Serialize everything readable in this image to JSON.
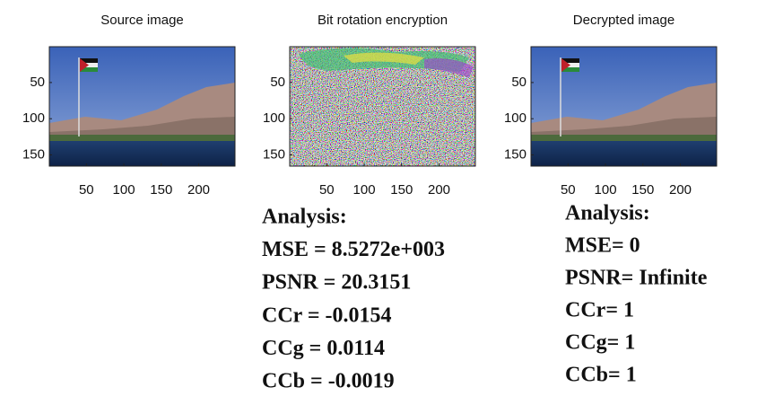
{
  "panels": [
    {
      "title": "Source image",
      "xlim": [
        0.5,
        248.5
      ],
      "ylim": [
        0.5,
        165.5
      ],
      "xticks": [
        50,
        100,
        150,
        200
      ],
      "yticks": [
        50,
        100,
        150
      ]
    },
    {
      "title": "Bit rotation encryption",
      "xlim": [
        0.5,
        248.5
      ],
      "ylim": [
        0.5,
        165.5
      ],
      "xticks": [
        50,
        100,
        150,
        200
      ],
      "yticks": [
        50,
        100,
        150
      ]
    },
    {
      "title": "Decrypted image",
      "xlim": [
        0.5,
        248.5
      ],
      "ylim": [
        0.5,
        165.5
      ],
      "xticks": [
        50,
        100,
        150,
        200
      ],
      "yticks": [
        50,
        100,
        150
      ]
    }
  ],
  "analysis": [
    {
      "heading": "Analysis:",
      "lines": [
        "MSE = 8.5272e+003",
        "PSNR = 20.3151",
        "CCr = -0.0154",
        "CCg = 0.0114",
        "CCb = -0.0019"
      ]
    },
    {
      "heading": "Analysis:",
      "lines": [
        "MSE= 0",
        "PSNR= Infinite",
        "CCr= 1",
        "CCg= 1",
        "CCb= 1"
      ]
    }
  ]
}
